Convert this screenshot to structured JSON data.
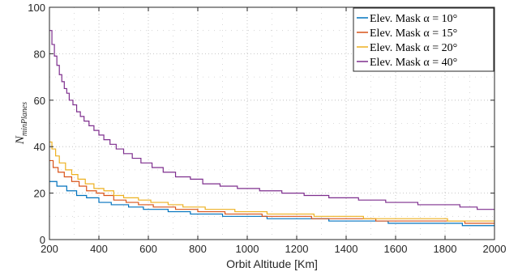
{
  "chart_data": {
    "type": "line",
    "step": true,
    "xlabel": "Orbit Altitude [Km]",
    "ylabel_main": "N",
    "ylabel_sub": "minPlanes",
    "xlim": [
      200,
      2000
    ],
    "ylim": [
      0,
      100
    ],
    "xticks": [
      200,
      400,
      600,
      800,
      1000,
      1200,
      1400,
      1600,
      1800,
      2000
    ],
    "yticks": [
      0,
      20,
      40,
      60,
      80,
      100
    ],
    "grid": true,
    "minor_grid": true,
    "legend_position": "top-right",
    "series": [
      {
        "name": "Elev. Mask α = 10°",
        "color": "#0072BD",
        "points": [
          [
            200,
            25
          ],
          [
            230,
            23
          ],
          [
            270,
            21
          ],
          [
            310,
            19
          ],
          [
            350,
            18
          ],
          [
            400,
            16
          ],
          [
            450,
            15
          ],
          [
            520,
            14
          ],
          [
            580,
            13
          ],
          [
            680,
            12
          ],
          [
            770,
            11
          ],
          [
            900,
            10
          ],
          [
            1080,
            9
          ],
          [
            1330,
            8
          ],
          [
            1570,
            7
          ],
          [
            1870,
            6
          ],
          [
            2000,
            6
          ]
        ]
      },
      {
        "name": "Elev. Mask α = 15°",
        "color": "#D95319",
        "points": [
          [
            200,
            34
          ],
          [
            215,
            31
          ],
          [
            235,
            29
          ],
          [
            260,
            27
          ],
          [
            290,
            25
          ],
          [
            320,
            23
          ],
          [
            350,
            21
          ],
          [
            390,
            20
          ],
          [
            420,
            19
          ],
          [
            460,
            17
          ],
          [
            510,
            16
          ],
          [
            560,
            15
          ],
          [
            620,
            14
          ],
          [
            710,
            13
          ],
          [
            800,
            12
          ],
          [
            910,
            11
          ],
          [
            1060,
            10
          ],
          [
            1260,
            9
          ],
          [
            1520,
            8
          ],
          [
            1880,
            7
          ],
          [
            2000,
            7
          ]
        ]
      },
      {
        "name": "Elev. Mask α = 20°",
        "color": "#EDB120",
        "points": [
          [
            200,
            42
          ],
          [
            210,
            39
          ],
          [
            225,
            36
          ],
          [
            240,
            33
          ],
          [
            265,
            30
          ],
          [
            290,
            28
          ],
          [
            315,
            26
          ],
          [
            345,
            24
          ],
          [
            380,
            22
          ],
          [
            420,
            21
          ],
          [
            460,
            19
          ],
          [
            500,
            18
          ],
          [
            560,
            17
          ],
          [
            610,
            16
          ],
          [
            680,
            15
          ],
          [
            740,
            14
          ],
          [
            830,
            13
          ],
          [
            950,
            12
          ],
          [
            1080,
            11
          ],
          [
            1270,
            10
          ],
          [
            1470,
            9
          ],
          [
            1810,
            8
          ],
          [
            2000,
            8
          ]
        ]
      },
      {
        "name": "Elev. Mask α = 40°",
        "color": "#7E2F8E",
        "points": [
          [
            200,
            90
          ],
          [
            210,
            84
          ],
          [
            220,
            79
          ],
          [
            230,
            75
          ],
          [
            240,
            71
          ],
          [
            250,
            68
          ],
          [
            260,
            65
          ],
          [
            270,
            63
          ],
          [
            280,
            60
          ],
          [
            295,
            58
          ],
          [
            310,
            55
          ],
          [
            325,
            53
          ],
          [
            340,
            51
          ],
          [
            360,
            49
          ],
          [
            380,
            47
          ],
          [
            400,
            45
          ],
          [
            420,
            43
          ],
          [
            445,
            41
          ],
          [
            470,
            39
          ],
          [
            500,
            37
          ],
          [
            535,
            35
          ],
          [
            570,
            33
          ],
          [
            615,
            31
          ],
          [
            660,
            29
          ],
          [
            710,
            27
          ],
          [
            770,
            26
          ],
          [
            820,
            24
          ],
          [
            890,
            23
          ],
          [
            960,
            22
          ],
          [
            1050,
            21
          ],
          [
            1140,
            20
          ],
          [
            1230,
            19
          ],
          [
            1330,
            18
          ],
          [
            1450,
            17
          ],
          [
            1560,
            16
          ],
          [
            1690,
            15
          ],
          [
            1860,
            14
          ],
          [
            1930,
            13
          ],
          [
            2000,
            13
          ]
        ]
      }
    ]
  }
}
